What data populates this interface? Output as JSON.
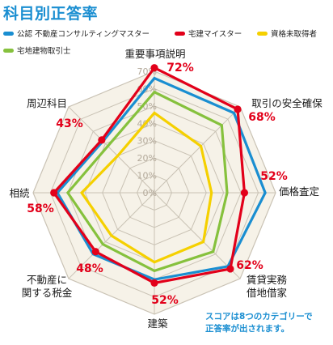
{
  "title": "科目別正答率",
  "note": "スコアは8つのカテゴリーで\n正答率が出されます。",
  "colors": {
    "title": "#1a8ed1",
    "web": "#c9c2b4",
    "fill": "#f6f2e8",
    "tick": "#b3a99a",
    "value": "#e2001a",
    "category": "#1a1a1a"
  },
  "chart_data": {
    "type": "radar",
    "categories": [
      "重要事項説明",
      "取引の安全確保",
      "価格査定",
      "賃貸実務\n借地借家",
      "建築",
      "不動産に\n関する税金",
      "相続",
      "周辺科目"
    ],
    "rlim": [
      0,
      70
    ],
    "ticks": [
      "0%",
      "10%",
      "20%",
      "30%",
      "40%",
      "50%",
      "60%",
      "70%"
    ],
    "value_labels": [
      "72%",
      "68%",
      "52%",
      "62%",
      "52%",
      "48%",
      "58%",
      "43%"
    ],
    "series": [
      {
        "name": "公認 不動産コンサルティングマスター",
        "color": "#1a8ed1",
        "values": [
          66,
          65,
          64,
          60,
          50,
          50,
          56,
          42
        ]
      },
      {
        "name": "宅建マイスター",
        "color": "#e2001a",
        "values": [
          72,
          68,
          52,
          62,
          52,
          48,
          58,
          43
        ]
      },
      {
        "name": "資格未取得者",
        "color": "#f5d000",
        "values": [
          46,
          38,
          33,
          40,
          40,
          35,
          42,
          30
        ]
      },
      {
        "name": "宅地建物取引士",
        "color": "#86c13d",
        "values": [
          58,
          55,
          42,
          48,
          45,
          42,
          50,
          38
        ]
      }
    ]
  }
}
